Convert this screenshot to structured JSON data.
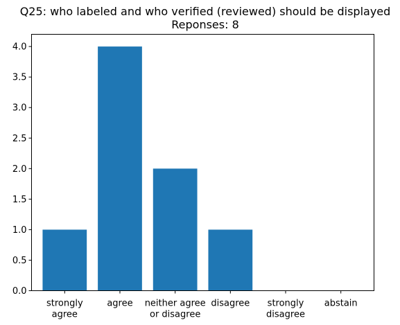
{
  "chart_data": {
    "type": "bar",
    "title": "Q25: who labeled and who verified (reviewed) should be displayed",
    "subtitle": "Reponses: 8",
    "xlabel": "",
    "ylabel": "",
    "categories": [
      [
        "strongly",
        "agree"
      ],
      [
        "agree"
      ],
      [
        "neither agree",
        "or disagree"
      ],
      [
        "disagree"
      ],
      [
        "strongly",
        "disagree"
      ],
      [
        "abstain"
      ]
    ],
    "values": [
      1,
      4,
      2,
      1,
      0,
      0
    ],
    "ylim": [
      0,
      4.2
    ],
    "yticks": [
      {
        "value": 0,
        "label": "0.0"
      },
      {
        "value": 0.5,
        "label": "0.5"
      },
      {
        "value": 1,
        "label": "1.0"
      },
      {
        "value": 1.5,
        "label": "1.5"
      },
      {
        "value": 2,
        "label": "2.0"
      },
      {
        "value": 2.5,
        "label": "2.5"
      },
      {
        "value": 3,
        "label": "3.0"
      },
      {
        "value": 3.5,
        "label": "3.5"
      },
      {
        "value": 4,
        "label": "4.0"
      }
    ],
    "grid": false,
    "bar_color": "#1f77b4"
  }
}
